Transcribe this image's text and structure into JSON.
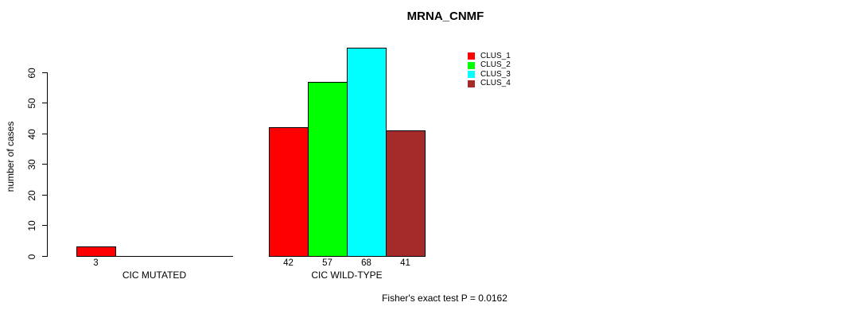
{
  "chart_data": {
    "type": "bar",
    "title": "MRNA_CNMF",
    "ylabel": "number of cases",
    "xlabel": "",
    "ylim": [
      0,
      60
    ],
    "yticks": [
      0,
      10,
      20,
      30,
      40,
      50,
      60
    ],
    "categories": [
      "CIC MUTATED",
      "CIC WILD-TYPE"
    ],
    "series": [
      {
        "name": "CLUS_1",
        "color": "#ff0000",
        "values": [
          3,
          42
        ]
      },
      {
        "name": "CLUS_2",
        "color": "#00ff00",
        "values": [
          0,
          57
        ]
      },
      {
        "name": "CLUS_3",
        "color": "#00ffff",
        "values": [
          0,
          68
        ]
      },
      {
        "name": "CLUS_4",
        "color": "#a52a2a",
        "values": [
          0,
          41
        ]
      }
    ],
    "visible_bar_value_labels": [
      "3",
      "42",
      "57",
      "68",
      "41"
    ],
    "legend": {
      "position": "top-right",
      "entries": [
        "CLUS_1",
        "CLUS_2",
        "CLUS_3",
        "CLUS_4"
      ]
    },
    "annotation": "Fisher's exact test P = 0.0162",
    "grid": false,
    "background_color": "#ffffff",
    "axis_color": "#000000"
  }
}
